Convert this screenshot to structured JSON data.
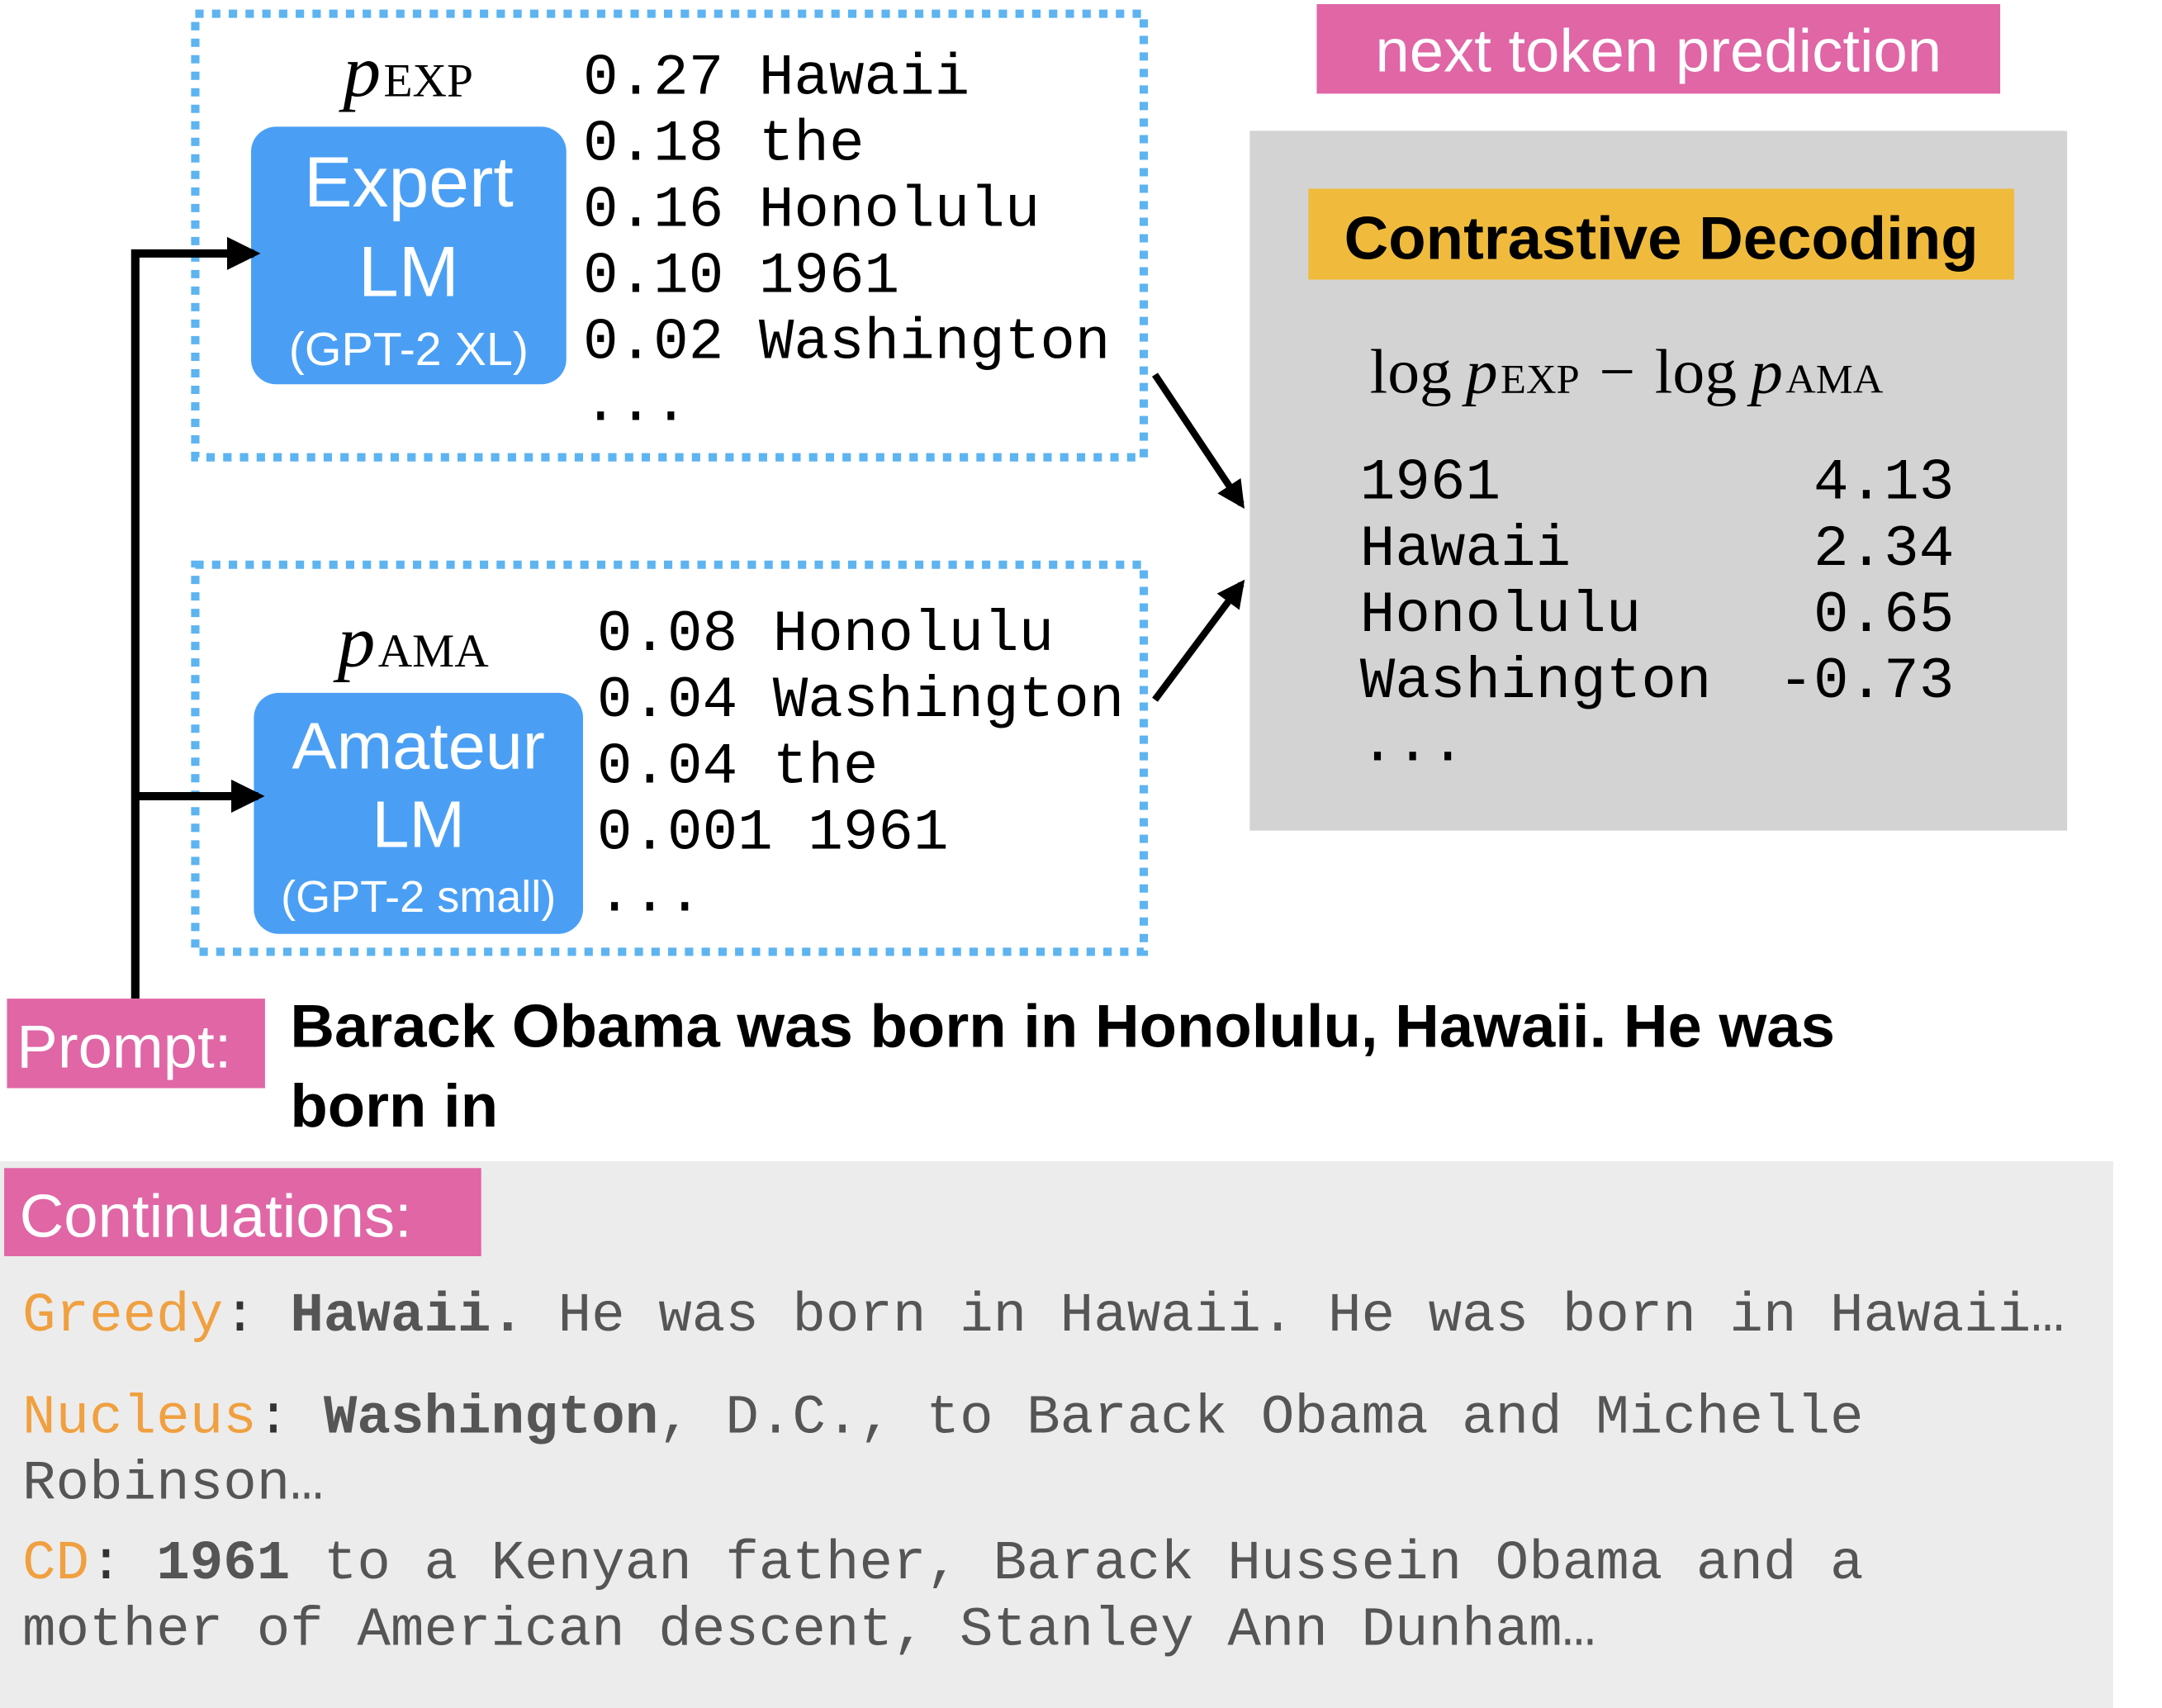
{
  "expert": {
    "label": {
      "symbol": "p",
      "subscript": "EXP"
    },
    "name": [
      "Expert",
      "LM"
    ],
    "model": "(GPT-2 XL)",
    "predictions": [
      {
        "prob": "0.27",
        "token": "Hawaii"
      },
      {
        "prob": "0.18",
        "token": "the"
      },
      {
        "prob": "0.16",
        "token": "Honolulu"
      },
      {
        "prob": "0.10",
        "token": "1961"
      },
      {
        "prob": "0.02",
        "token": "Washington"
      }
    ],
    "ellipsis": "..."
  },
  "amateur": {
    "label": {
      "symbol": "p",
      "subscript": "AMA"
    },
    "name": [
      "Amateur",
      "LM"
    ],
    "model": "(GPT-2 small)",
    "predictions": [
      {
        "prob": "0.08",
        "token": "Honolulu"
      },
      {
        "prob": "0.04",
        "token": "Washington"
      },
      {
        "prob": "0.04",
        "token": "the"
      },
      {
        "prob": "0.001",
        "token": "1961"
      }
    ],
    "ellipsis": "..."
  },
  "next_token_label": "next token prediction",
  "contrastive": {
    "title": "Contrastive Decoding",
    "formula": {
      "terms": [
        {
          "op": "log",
          "symbol": "p",
          "subscript": "EXP"
        },
        {
          "op": "log",
          "symbol": "p",
          "subscript": "AMA"
        }
      ],
      "operator": "−"
    },
    "scores": [
      {
        "token": "1961",
        "score": "4.13"
      },
      {
        "token": "Hawaii",
        "score": "2.34"
      },
      {
        "token": "Honolulu",
        "score": "0.65"
      },
      {
        "token": "Washington",
        "score": "-0.73"
      }
    ],
    "ellipsis": "..."
  },
  "prompt": {
    "label": "Prompt:",
    "lines": [
      "Barack Obama was born in Honolulu, Hawaii. He was",
      "born in"
    ]
  },
  "continuations": {
    "label": "Continuations:",
    "items": [
      {
        "method": "Greedy",
        "punct": ":",
        "highlight": "Hawaii.",
        "text": [
          " He was born in Hawaii. He was born in Hawaii…"
        ]
      },
      {
        "method": "Nucleus",
        "punct": ":",
        "highlight": "Washington",
        "text": [
          ", D.C., to Barack Obama and Michelle",
          "Robinson…"
        ]
      },
      {
        "method": "CD",
        "punct": ":",
        "highlight": "1961",
        "text": [
          " to a Kenyan father, Barack Hussein Obama and a",
          "mother of American descent, Stanley Ann Dunham…"
        ]
      }
    ]
  }
}
